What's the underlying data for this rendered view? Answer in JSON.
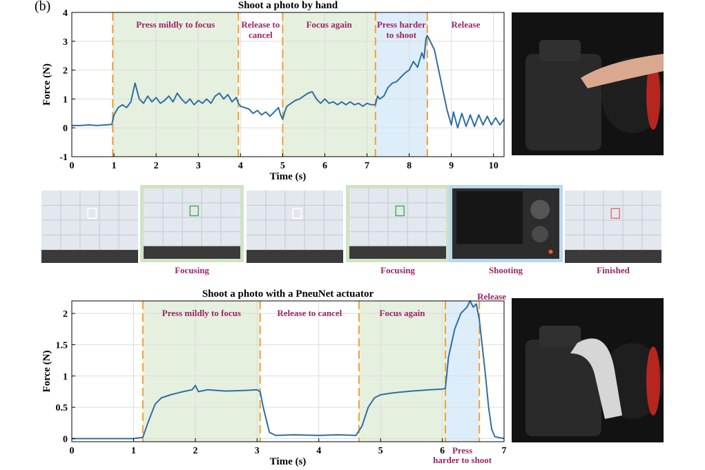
{
  "panel_label": "(b)",
  "chart_data": [
    {
      "type": "line",
      "title": "Shoot a photo by hand",
      "xlabel": "Time (s)",
      "ylabel": "Force (N)",
      "xlim": [
        0,
        10.25
      ],
      "ylim": [
        -1,
        4
      ],
      "xticks": [
        0,
        1,
        2,
        3,
        4,
        5,
        6,
        7,
        8,
        9,
        10
      ],
      "yticks": [
        -1,
        0,
        1,
        2,
        3,
        4
      ],
      "grid": true,
      "line_color": "#2e6da4",
      "phases": [
        {
          "x0": 0.97,
          "x1": 3.95,
          "label": [
            "Press mildly to focus"
          ],
          "fill": "#e6f0de"
        },
        {
          "x0": 3.95,
          "x1": 5.0,
          "label": [
            "Release to",
            "cancel"
          ],
          "fill": "none"
        },
        {
          "x0": 5.0,
          "x1": 7.2,
          "label": [
            "Focus again"
          ],
          "fill": "#e6f0de"
        },
        {
          "x0": 7.2,
          "x1": 8.43,
          "label": [
            "Press harder",
            "to shoot"
          ],
          "fill": "#ddeefa"
        },
        {
          "x0": 8.43,
          "x1": 10.25,
          "label": [
            "Release"
          ],
          "fill": "none"
        }
      ],
      "dividers": [
        0.97,
        3.95,
        5.0,
        7.2,
        8.43
      ],
      "points": [
        [
          0,
          0.08
        ],
        [
          0.2,
          0.08
        ],
        [
          0.4,
          0.1
        ],
        [
          0.6,
          0.08
        ],
        [
          0.8,
          0.1
        ],
        [
          0.95,
          0.12
        ],
        [
          1.0,
          0.45
        ],
        [
          1.1,
          0.7
        ],
        [
          1.2,
          0.8
        ],
        [
          1.3,
          0.7
        ],
        [
          1.4,
          0.9
        ],
        [
          1.5,
          1.55
        ],
        [
          1.6,
          1.0
        ],
        [
          1.7,
          0.85
        ],
        [
          1.8,
          1.1
        ],
        [
          1.9,
          0.9
        ],
        [
          2.0,
          1.05
        ],
        [
          2.1,
          0.85
        ],
        [
          2.2,
          0.95
        ],
        [
          2.3,
          1.1
        ],
        [
          2.4,
          0.9
        ],
        [
          2.5,
          1.2
        ],
        [
          2.6,
          1.0
        ],
        [
          2.7,
          0.85
        ],
        [
          2.8,
          1.0
        ],
        [
          2.9,
          0.8
        ],
        [
          3.0,
          0.95
        ],
        [
          3.1,
          0.85
        ],
        [
          3.2,
          1.0
        ],
        [
          3.3,
          0.85
        ],
        [
          3.4,
          1.1
        ],
        [
          3.5,
          1.2
        ],
        [
          3.6,
          1.0
        ],
        [
          3.7,
          1.15
        ],
        [
          3.8,
          0.9
        ],
        [
          3.9,
          1.05
        ],
        [
          3.95,
          0.85
        ],
        [
          4.0,
          0.75
        ],
        [
          4.1,
          0.7
        ],
        [
          4.2,
          0.65
        ],
        [
          4.3,
          0.5
        ],
        [
          4.4,
          0.6
        ],
        [
          4.5,
          0.45
        ],
        [
          4.6,
          0.55
        ],
        [
          4.7,
          0.4
        ],
        [
          4.8,
          0.55
        ],
        [
          4.9,
          0.7
        ],
        [
          4.95,
          0.45
        ],
        [
          5.0,
          0.3
        ],
        [
          5.05,
          0.55
        ],
        [
          5.1,
          0.75
        ],
        [
          5.2,
          0.85
        ],
        [
          5.3,
          0.95
        ],
        [
          5.4,
          1.0
        ],
        [
          5.5,
          1.1
        ],
        [
          5.6,
          1.2
        ],
        [
          5.7,
          1.25
        ],
        [
          5.8,
          1.0
        ],
        [
          5.9,
          0.85
        ],
        [
          6.0,
          1.0
        ],
        [
          6.1,
          0.85
        ],
        [
          6.2,
          0.9
        ],
        [
          6.3,
          0.8
        ],
        [
          6.4,
          0.9
        ],
        [
          6.5,
          0.8
        ],
        [
          6.6,
          0.9
        ],
        [
          6.7,
          0.8
        ],
        [
          6.8,
          0.85
        ],
        [
          6.9,
          0.75
        ],
        [
          7.0,
          0.85
        ],
        [
          7.1,
          0.8
        ],
        [
          7.2,
          0.8
        ],
        [
          7.25,
          1.1
        ],
        [
          7.3,
          1.0
        ],
        [
          7.4,
          1.1
        ],
        [
          7.5,
          1.4
        ],
        [
          7.6,
          1.55
        ],
        [
          7.7,
          1.6
        ],
        [
          7.8,
          1.75
        ],
        [
          7.9,
          1.9
        ],
        [
          8.0,
          2.0
        ],
        [
          8.1,
          2.3
        ],
        [
          8.2,
          2.1
        ],
        [
          8.3,
          2.6
        ],
        [
          8.35,
          2.4
        ],
        [
          8.4,
          3.1
        ],
        [
          8.43,
          3.2
        ],
        [
          8.5,
          3.0
        ],
        [
          8.6,
          2.7
        ],
        [
          8.7,
          2.0
        ],
        [
          8.8,
          1.3
        ],
        [
          8.9,
          0.6
        ],
        [
          9.0,
          0.1
        ],
        [
          9.05,
          0.55
        ],
        [
          9.15,
          0.0
        ],
        [
          9.25,
          0.5
        ],
        [
          9.35,
          0.05
        ],
        [
          9.45,
          0.45
        ],
        [
          9.55,
          0.05
        ],
        [
          9.65,
          0.45
        ],
        [
          9.75,
          0.1
        ],
        [
          9.85,
          0.4
        ],
        [
          9.95,
          0.1
        ],
        [
          10.05,
          0.35
        ],
        [
          10.15,
          0.1
        ],
        [
          10.25,
          0.3
        ]
      ]
    },
    {
      "type": "line",
      "title": "Shoot a photo with a PneuNet actuator",
      "xlabel": "Time (s)",
      "ylabel": "Force (N)",
      "xlim": [
        0,
        7
      ],
      "ylim": [
        -0.05,
        2.2
      ],
      "xticks": [
        0,
        1,
        2,
        3,
        4,
        5,
        6,
        7
      ],
      "yticks": [
        0,
        0.5,
        1,
        1.5,
        2
      ],
      "grid": true,
      "line_color": "#2e6da4",
      "phases": [
        {
          "x0": 1.15,
          "x1": 3.05,
          "label": [
            "Press mildly to focus"
          ],
          "fill": "#e6f0de"
        },
        {
          "x0": 3.05,
          "x1": 4.65,
          "label": [
            "Release to cancel"
          ],
          "fill": "none"
        },
        {
          "x0": 4.65,
          "x1": 6.05,
          "label": [
            "Focus again"
          ],
          "fill": "#e6f0de"
        },
        {
          "x0": 6.05,
          "x1": 6.6,
          "label": [
            "Press",
            "harder to shoot"
          ],
          "fill": "#ddeefa",
          "label_below": true
        },
        {
          "x0": 6.6,
          "x1": 7.0,
          "label": [
            "Release"
          ],
          "fill": "none",
          "label_top": true
        }
      ],
      "dividers": [
        1.15,
        3.05,
        4.65,
        6.05,
        6.6
      ],
      "points": [
        [
          0,
          0.0
        ],
        [
          0.5,
          0.0
        ],
        [
          1.0,
          0.0
        ],
        [
          1.15,
          0.02
        ],
        [
          1.25,
          0.3
        ],
        [
          1.35,
          0.55
        ],
        [
          1.45,
          0.65
        ],
        [
          1.6,
          0.7
        ],
        [
          1.8,
          0.75
        ],
        [
          1.95,
          0.78
        ],
        [
          2.0,
          0.85
        ],
        [
          2.05,
          0.75
        ],
        [
          2.2,
          0.78
        ],
        [
          2.5,
          0.76
        ],
        [
          2.8,
          0.77
        ],
        [
          3.0,
          0.78
        ],
        [
          3.05,
          0.75
        ],
        [
          3.1,
          0.5
        ],
        [
          3.2,
          0.1
        ],
        [
          3.3,
          0.05
        ],
        [
          3.6,
          0.06
        ],
        [
          4.0,
          0.05
        ],
        [
          4.3,
          0.06
        ],
        [
          4.6,
          0.05
        ],
        [
          4.7,
          0.2
        ],
        [
          4.8,
          0.5
        ],
        [
          4.9,
          0.65
        ],
        [
          5.0,
          0.7
        ],
        [
          5.2,
          0.73
        ],
        [
          5.5,
          0.76
        ],
        [
          5.8,
          0.78
        ],
        [
          6.0,
          0.79
        ],
        [
          6.05,
          0.8
        ],
        [
          6.1,
          1.3
        ],
        [
          6.2,
          1.75
        ],
        [
          6.3,
          2.0
        ],
        [
          6.4,
          2.1
        ],
        [
          6.45,
          2.2
        ],
        [
          6.5,
          2.1
        ],
        [
          6.55,
          2.15
        ],
        [
          6.6,
          1.9
        ],
        [
          6.7,
          1.0
        ],
        [
          6.75,
          0.5
        ],
        [
          6.8,
          0.15
        ],
        [
          6.85,
          0.03
        ],
        [
          7.0,
          0.0
        ]
      ]
    }
  ],
  "screens": [
    {
      "caption": ""
    },
    {
      "caption": "Focusing",
      "border": "#cfe3c3"
    },
    {
      "caption": ""
    },
    {
      "caption": "Focusing",
      "border": "#cfe3c3"
    },
    {
      "caption": "Shooting",
      "border": "#b9d6ec"
    },
    {
      "caption": "Finished"
    }
  ]
}
